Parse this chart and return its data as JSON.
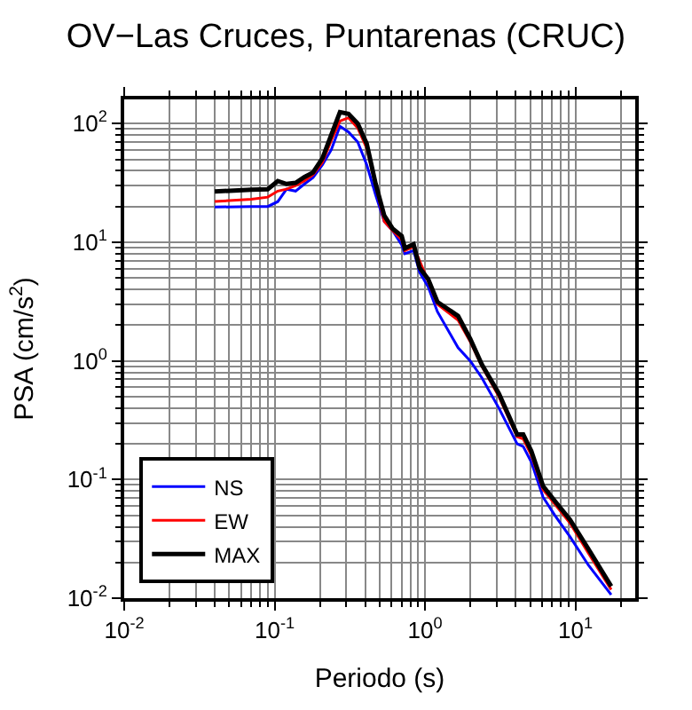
{
  "chart_data": {
    "type": "line",
    "title": "OV−Las Cruces, Puntarenas (CRUC)",
    "xlabel": "Periodo (s)",
    "ylabel": "PSA (cm/s$^{2}$)",
    "log": "xy",
    "grid": true,
    "legend": "bottom left",
    "line_style": "solid",
    "marker": "none",
    "xlim": [
      0.01,
      25
    ],
    "ylim": [
      0.01,
      160
    ],
    "xticks": [
      {
        "value": 0.01,
        "label": "10$^{-2}$"
      },
      {
        "value": 0.1,
        "label": "10$^{-1}$"
      },
      {
        "value": 1,
        "label": "10$^{0}$"
      },
      {
        "value": 10,
        "label": "10$^{1}$"
      }
    ],
    "yticks": [
      {
        "value": 0.01,
        "label": "10$^{-2}$"
      },
      {
        "value": 0.1,
        "label": "10$^{-1}$"
      },
      {
        "value": 1,
        "label": "10$^{0}$"
      },
      {
        "value": 10,
        "label": "10$^{1}$"
      },
      {
        "value": 100,
        "label": "10$^{2}$"
      }
    ],
    "x": [
      0.04,
      0.07,
      0.09,
      0.105,
      0.12,
      0.138,
      0.158,
      0.18,
      0.208,
      0.238,
      0.272,
      0.31,
      0.357,
      0.41,
      0.47,
      0.536,
      0.61,
      0.7,
      0.735,
      0.84,
      0.92,
      1.05,
      1.21,
      1.66,
      2.0,
      2.39,
      3.1,
      4.1,
      4.5,
      5.1,
      6.1,
      7.3,
      9.2,
      12.2,
      17.3
    ],
    "series": [
      {
        "name": "NS",
        "color": "#0000ff",
        "values": [
          19.8,
          20,
          20,
          22,
          28,
          27,
          31,
          35,
          45,
          60,
          95,
          85,
          70,
          45,
          25,
          15,
          12.5,
          9.5,
          8,
          8.5,
          5.6,
          4.2,
          2.6,
          1.29,
          1.0,
          0.72,
          0.4,
          0.2,
          0.19,
          0.14,
          0.071,
          0.05,
          0.033,
          0.019,
          0.0107
        ]
      },
      {
        "name": "EW",
        "color": "#ff0000",
        "values": [
          22.1,
          23,
          24,
          27,
          28,
          30,
          33,
          37,
          47,
          72,
          105,
          112,
          92,
          62,
          null,
          15,
          12.5,
          10.5,
          8.5,
          9.2,
          null,
          4.7,
          3,
          2.2,
          1.45,
          0.9,
          0.5,
          0.23,
          0.22,
          0.16,
          0.082,
          0.062,
          0.043,
          0.024,
          0.0118
        ]
      },
      {
        "name": "MAX",
        "color": "#000000",
        "values": [
          26.8,
          27.7,
          28,
          32.8,
          31,
          31.7,
          35.5,
          38.7,
          51,
          80,
          125,
          121,
          100,
          67.6,
          31,
          16.8,
          13,
          11.3,
          8.9,
          9.6,
          6.1,
          4.9,
          3.14,
          2.39,
          1.53,
          0.93,
          0.53,
          0.24,
          0.24,
          0.173,
          0.088,
          0.066,
          0.046,
          0.026,
          0.0126
        ]
      }
    ]
  }
}
